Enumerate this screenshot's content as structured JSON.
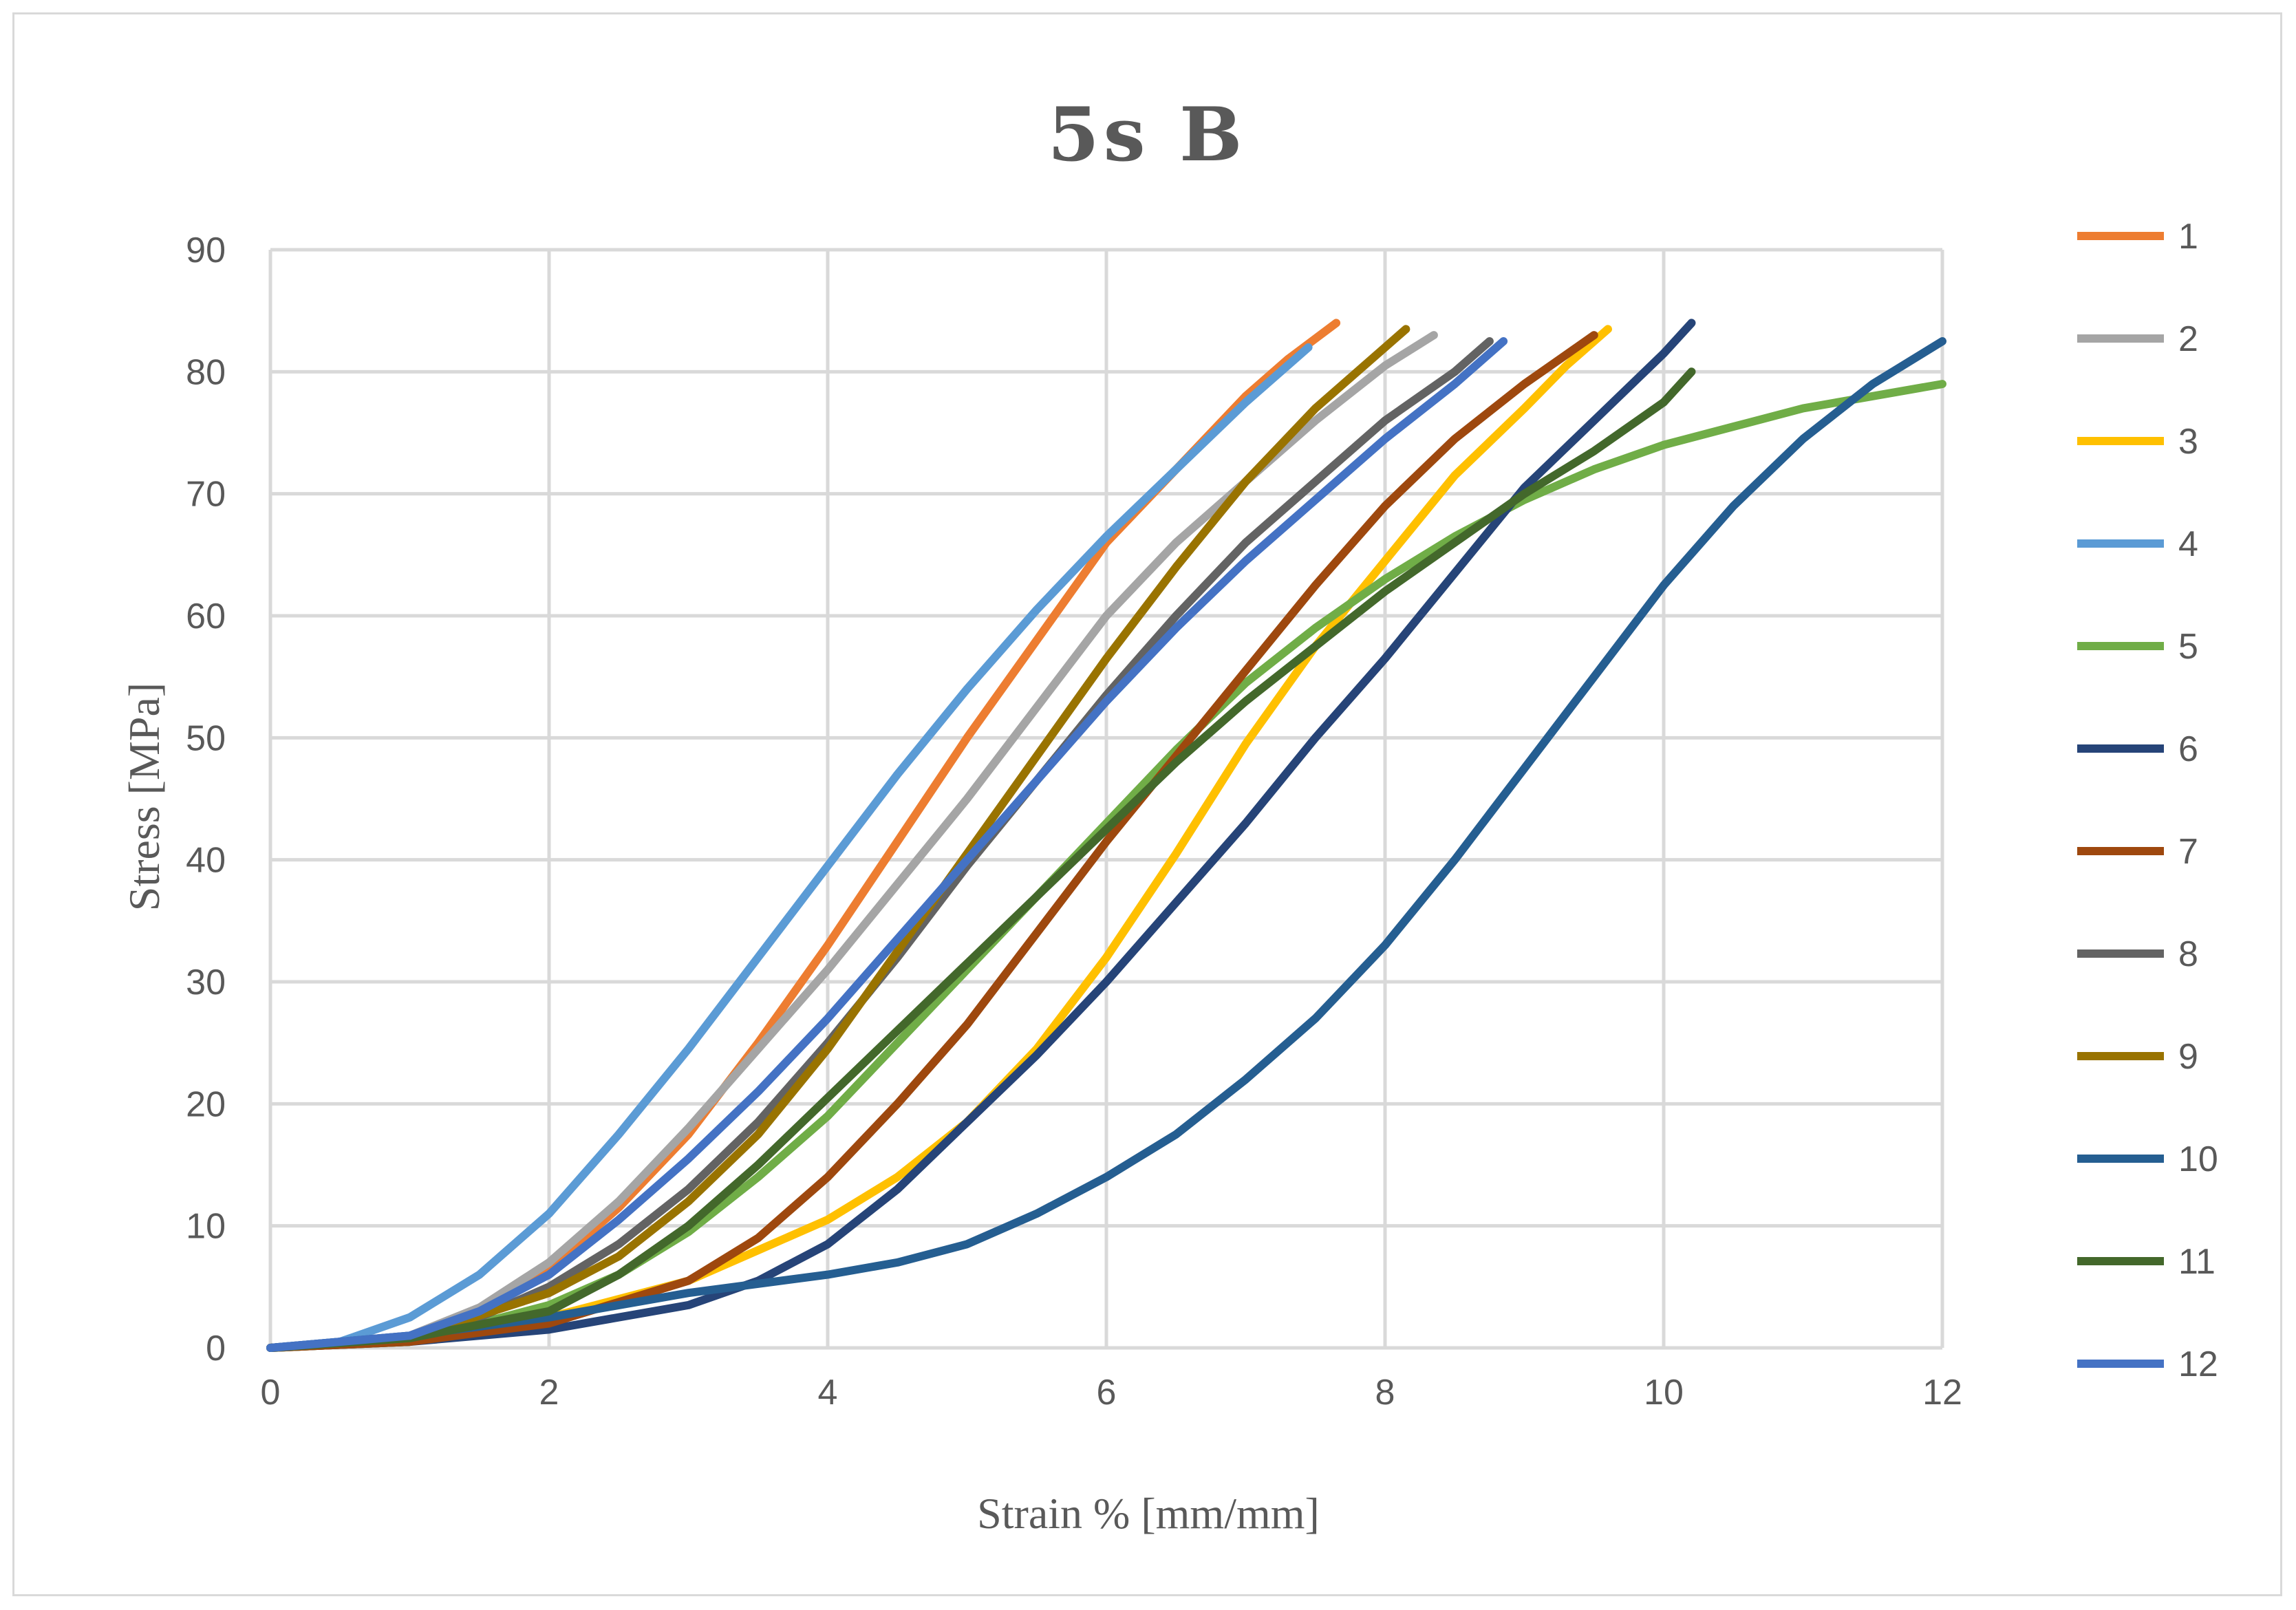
{
  "chart_data": {
    "type": "line",
    "title": "5s B",
    "xlabel": "Strain % [mm/mm]",
    "ylabel": "Stress [MPa]",
    "xlim": [
      0,
      12
    ],
    "ylim": [
      0,
      90
    ],
    "xticks": [
      0,
      2,
      4,
      6,
      8,
      10,
      12
    ],
    "yticks": [
      0,
      10,
      20,
      30,
      40,
      50,
      60,
      70,
      80,
      90
    ],
    "grid": true,
    "legend_position": "right",
    "series": [
      {
        "name": "1",
        "color": "#ED7D31",
        "x": [
          0,
          1,
          1.5,
          2,
          2.5,
          3,
          3.5,
          4,
          4.5,
          5,
          5.5,
          6,
          6.5,
          7,
          7.3,
          7.65
        ],
        "y": [
          0,
          0.8,
          2.8,
          6.5,
          11.5,
          17.5,
          25,
          33,
          41.5,
          50,
          58,
          66,
          72,
          78,
          81,
          84
        ]
      },
      {
        "name": "2",
        "color": "#A5A5A5",
        "x": [
          0,
          1,
          1.5,
          2,
          2.5,
          3,
          3.5,
          4,
          4.5,
          5,
          5.5,
          6,
          6.5,
          7,
          7.5,
          8,
          8.35
        ],
        "y": [
          0,
          1,
          3.3,
          7,
          12,
          18,
          24.5,
          31,
          38,
          45,
          52.5,
          60,
          66,
          71,
          76,
          80.5,
          83
        ]
      },
      {
        "name": "3",
        "color": "#FFC000",
        "x": [
          0,
          1,
          2,
          3,
          3.5,
          4,
          4.5,
          5,
          5.5,
          6,
          6.5,
          7,
          7.5,
          8,
          8.5,
          9,
          9.3,
          9.6
        ],
        "y": [
          0,
          0.5,
          2.5,
          5.5,
          8,
          10.5,
          14,
          18.5,
          24.5,
          32,
          40.5,
          49.5,
          57.5,
          64.5,
          71.5,
          77,
          80.5,
          83.5
        ]
      },
      {
        "name": "4",
        "color": "#5B9BD5",
        "x": [
          0,
          0.5,
          1,
          1.5,
          2,
          2.5,
          3,
          3.5,
          4,
          4.5,
          5,
          5.5,
          6,
          6.5,
          7,
          7.45
        ],
        "y": [
          0,
          0.5,
          2.5,
          6,
          11,
          17.5,
          24.5,
          32,
          39.5,
          47,
          54,
          60.5,
          66.5,
          72,
          77.5,
          82
        ]
      },
      {
        "name": "5",
        "color": "#70AD47",
        "x": [
          0,
          1,
          2,
          2.5,
          3,
          3.5,
          4,
          4.5,
          5,
          5.5,
          6,
          6.5,
          7,
          7.5,
          8,
          8.5,
          9,
          9.5,
          10,
          10.5,
          11,
          11.5,
          12
        ],
        "y": [
          0,
          0.5,
          3.5,
          6,
          9.5,
          14,
          19,
          25,
          31,
          37,
          43,
          49,
          54.5,
          59,
          63,
          66.5,
          69.5,
          72,
          74,
          75.5,
          77,
          78,
          79
        ]
      },
      {
        "name": "6",
        "color": "#264478",
        "x": [
          0,
          1,
          2,
          3,
          3.5,
          4,
          4.5,
          5,
          5.5,
          6,
          6.5,
          7,
          7.5,
          8,
          8.5,
          9,
          9.5,
          10,
          10.2
        ],
        "y": [
          0,
          0.5,
          1.5,
          3.5,
          5.5,
          8.5,
          13,
          18.5,
          24,
          30,
          36.5,
          43,
          50,
          56.5,
          63.5,
          70.5,
          76,
          81.5,
          84
        ]
      },
      {
        "name": "7",
        "color": "#9E480E",
        "x": [
          0,
          1,
          2,
          3,
          3.5,
          4,
          4.5,
          5,
          5.5,
          6,
          6.5,
          7,
          7.5,
          8,
          8.5,
          9,
          9.5
        ],
        "y": [
          0,
          0.5,
          2,
          5.5,
          9,
          14,
          20,
          26.5,
          34,
          41.5,
          48.5,
          55.5,
          62.5,
          69,
          74.5,
          79,
          83
        ]
      },
      {
        "name": "8",
        "color": "#636363",
        "x": [
          0,
          1,
          1.5,
          2,
          2.5,
          3,
          3.5,
          4,
          4.5,
          5,
          5.5,
          6,
          6.5,
          7,
          7.5,
          8,
          8.5,
          8.75
        ],
        "y": [
          0,
          0.8,
          2.5,
          5,
          8.5,
          13,
          18.5,
          25,
          32,
          39.5,
          46.5,
          53.5,
          60,
          66,
          71,
          76,
          80,
          82.5
        ]
      },
      {
        "name": "9",
        "color": "#997300",
        "x": [
          0,
          1,
          2,
          2.5,
          3,
          3.5,
          4,
          4.5,
          5,
          5.5,
          6,
          6.5,
          7,
          7.5,
          8,
          8.15
        ],
        "y": [
          0,
          0.8,
          4.5,
          7.5,
          12,
          17.5,
          24.5,
          32.5,
          40.5,
          48.5,
          56.5,
          64,
          71,
          77,
          82,
          83.5
        ]
      },
      {
        "name": "10",
        "color": "#255E91",
        "x": [
          0,
          1,
          2,
          3,
          4,
          4.5,
          5,
          5.5,
          6,
          6.5,
          7,
          7.5,
          8,
          8.5,
          9,
          9.5,
          10,
          10.5,
          11,
          11.5,
          12
        ],
        "y": [
          0,
          1,
          2.5,
          4.5,
          6,
          7,
          8.5,
          11,
          14,
          17.5,
          22,
          27,
          33,
          40,
          47.5,
          55,
          62.5,
          69,
          74.5,
          79,
          82.5
        ]
      },
      {
        "name": "11",
        "color": "#43682B",
        "x": [
          0,
          1,
          2,
          2.5,
          3,
          3.5,
          4,
          4.5,
          5,
          5.5,
          6,
          6.5,
          7,
          7.5,
          8,
          8.5,
          9,
          9.5,
          10,
          10.2
        ],
        "y": [
          0,
          0.8,
          3,
          6,
          10,
          15,
          20.5,
          26,
          31.5,
          37,
          42.5,
          48,
          53,
          57.5,
          62,
          66,
          70,
          73.5,
          77.5,
          80
        ]
      },
      {
        "name": "12",
        "color": "#4472C4",
        "x": [
          0,
          1,
          1.5,
          2,
          2.5,
          3,
          3.5,
          4,
          4.5,
          5,
          5.5,
          6,
          6.5,
          7,
          7.5,
          8,
          8.5,
          8.85
        ],
        "y": [
          0,
          1,
          3,
          6,
          10.5,
          15.5,
          21,
          27,
          33.5,
          40,
          46.5,
          53,
          59,
          64.5,
          69.5,
          74.5,
          79,
          82.5
        ]
      }
    ]
  }
}
